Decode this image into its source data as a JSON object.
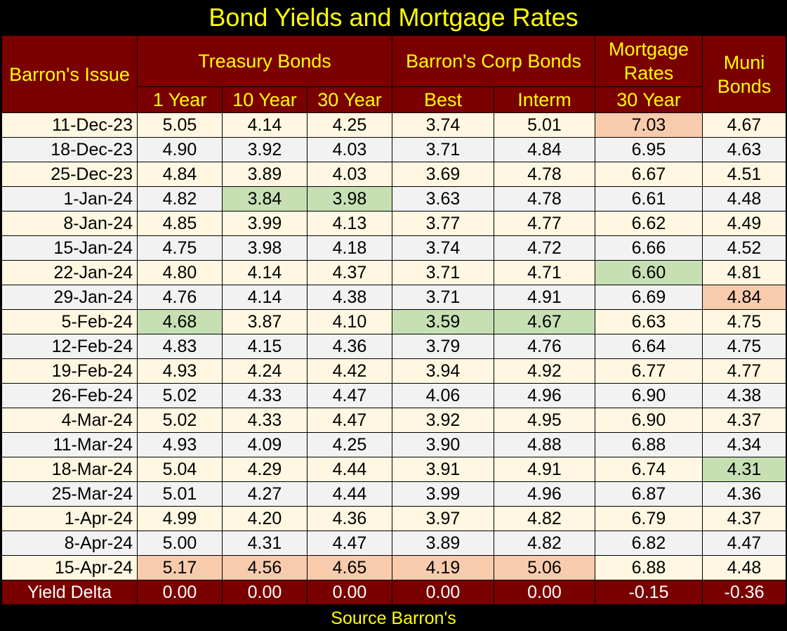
{
  "title": "Bond Yields and Mortgage Rates",
  "source": "Source Barron's",
  "headers": {
    "issue": "Barron's Issue",
    "treasury": "Treasury Bonds",
    "corp": "Barron's Corp Bonds",
    "mortgage": "Mortgage Rates",
    "muni": "Muni Bonds",
    "sub": [
      "1 Year",
      "10 Year",
      "30 Year",
      "Best",
      "Interm",
      "30 Year"
    ]
  },
  "colors": {
    "title_text": "#ffff00",
    "header_bg": "#7a0000",
    "header_text": "#ffff00",
    "low_highlight": "#c6e0b4",
    "high_highlight": "#f8cbad",
    "row_odd": "#fff7e1",
    "row_even": "#f2f2f2"
  },
  "chart_data": {
    "type": "table",
    "title": "Bond Yields and Mortgage Rates",
    "columns": [
      "Barron's Issue",
      "Treasury 1 Year",
      "Treasury 10 Year",
      "Treasury 30 Year",
      "Corp Best",
      "Corp Interm",
      "Mortgage Rates 30 Year",
      "Muni Bonds"
    ],
    "rows": [
      [
        "11-Dec-23",
        "5.05",
        "4.14",
        "4.25",
        "3.74",
        "5.01",
        "7.03",
        "4.67"
      ],
      [
        "18-Dec-23",
        "4.90",
        "3.92",
        "4.03",
        "3.71",
        "4.84",
        "6.95",
        "4.63"
      ],
      [
        "25-Dec-23",
        "4.84",
        "3.89",
        "4.03",
        "3.69",
        "4.78",
        "6.67",
        "4.51"
      ],
      [
        "1-Jan-24",
        "4.82",
        "3.84",
        "3.98",
        "3.63",
        "4.78",
        "6.61",
        "4.48"
      ],
      [
        "8-Jan-24",
        "4.85",
        "3.99",
        "4.13",
        "3.77",
        "4.77",
        "6.62",
        "4.49"
      ],
      [
        "15-Jan-24",
        "4.75",
        "3.98",
        "4.18",
        "3.74",
        "4.72",
        "6.66",
        "4.52"
      ],
      [
        "22-Jan-24",
        "4.80",
        "4.14",
        "4.37",
        "3.71",
        "4.71",
        "6.60",
        "4.81"
      ],
      [
        "29-Jan-24",
        "4.76",
        "4.14",
        "4.38",
        "3.71",
        "4.91",
        "6.69",
        "4.84"
      ],
      [
        "5-Feb-24",
        "4.68",
        "3.87",
        "4.10",
        "3.59",
        "4.67",
        "6.63",
        "4.75"
      ],
      [
        "12-Feb-24",
        "4.83",
        "4.15",
        "4.36",
        "3.79",
        "4.76",
        "6.64",
        "4.75"
      ],
      [
        "19-Feb-24",
        "4.93",
        "4.24",
        "4.42",
        "3.94",
        "4.92",
        "6.77",
        "4.77"
      ],
      [
        "26-Feb-24",
        "5.02",
        "4.33",
        "4.47",
        "4.06",
        "4.96",
        "6.90",
        "4.38"
      ],
      [
        "4-Mar-24",
        "5.02",
        "4.33",
        "4.47",
        "3.92",
        "4.95",
        "6.90",
        "4.37"
      ],
      [
        "11-Mar-24",
        "4.93",
        "4.09",
        "4.25",
        "3.90",
        "4.88",
        "6.88",
        "4.34"
      ],
      [
        "18-Mar-24",
        "5.04",
        "4.29",
        "4.44",
        "3.91",
        "4.91",
        "6.74",
        "4.31"
      ],
      [
        "25-Mar-24",
        "5.01",
        "4.27",
        "4.44",
        "3.99",
        "4.96",
        "6.87",
        "4.36"
      ],
      [
        "1-Apr-24",
        "4.99",
        "4.20",
        "4.36",
        "3.97",
        "4.82",
        "6.79",
        "4.37"
      ],
      [
        "8-Apr-24",
        "5.00",
        "4.31",
        "4.47",
        "3.89",
        "4.82",
        "6.82",
        "4.47"
      ],
      [
        "15-Apr-24",
        "5.17",
        "4.56",
        "4.65",
        "4.19",
        "5.06",
        "6.88",
        "4.48"
      ]
    ],
    "highlights": {
      "low": [
        [
          3,
          2
        ],
        [
          3,
          3
        ],
        [
          6,
          6
        ],
        [
          8,
          1
        ],
        [
          8,
          4
        ],
        [
          8,
          5
        ],
        [
          14,
          7
        ]
      ],
      "high": [
        [
          0,
          6
        ],
        [
          7,
          7
        ],
        [
          18,
          1
        ],
        [
          18,
          2
        ],
        [
          18,
          3
        ],
        [
          18,
          4
        ],
        [
          18,
          5
        ]
      ]
    },
    "footer": [
      "Yield Delta",
      "0.00",
      "0.00",
      "0.00",
      "0.00",
      "0.00",
      "-0.15",
      "-0.36"
    ]
  }
}
